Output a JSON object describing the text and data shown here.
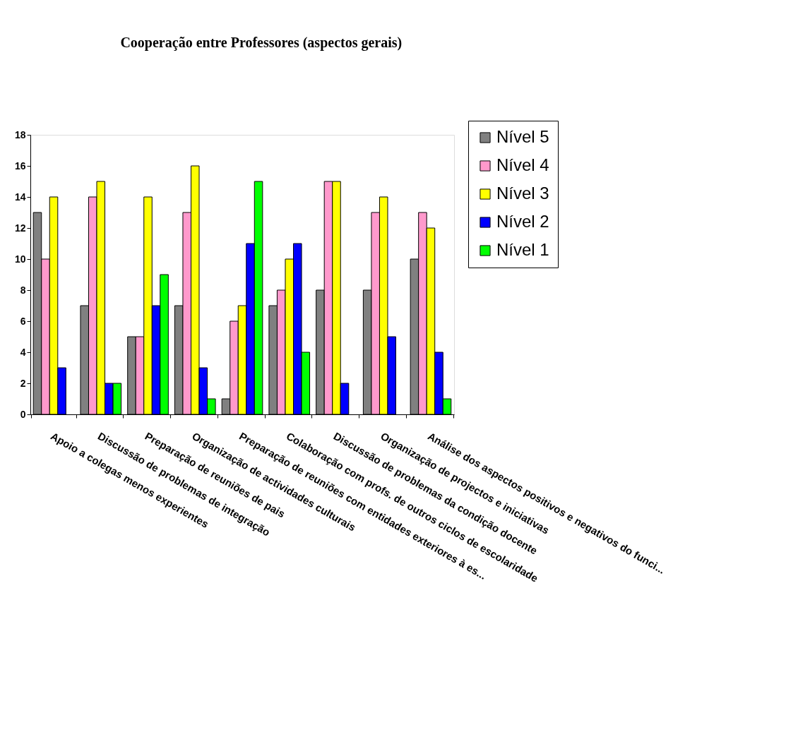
{
  "chart_data": {
    "type": "bar",
    "title": "Cooperação entre Professores (aspectos gerais)",
    "categories": [
      "Apoio a colegas menos experientes",
      "Discussão de problemas de integração",
      "Preparação de reuniões de pais",
      "Organização de actividades culturais",
      "Preparação de reuniões com entidades exteriores à es...",
      "Colaboração com profs. de outros ciclos de escolaridade",
      "Discussão de problemas da condição docente",
      "Organização de projectos e iniciativas",
      "Análise dos aspectos positivos e negativos do funci..."
    ],
    "series": [
      {
        "name": "Nível 5",
        "color": "#808080",
        "values": [
          13,
          7,
          5,
          7,
          1,
          7,
          8,
          8,
          10
        ]
      },
      {
        "name": "Nível 4",
        "color": "#ff99cc",
        "values": [
          10,
          14,
          5,
          13,
          6,
          8,
          15,
          13,
          13
        ]
      },
      {
        "name": "Nível 3",
        "color": "#ffff00",
        "values": [
          14,
          15,
          14,
          16,
          7,
          10,
          15,
          14,
          12
        ]
      },
      {
        "name": "Nível 2",
        "color": "#0000ff",
        "values": [
          3,
          2,
          7,
          3,
          11,
          11,
          2,
          5,
          4
        ]
      },
      {
        "name": "Nível 1",
        "color": "#00ff00",
        "values": [
          null,
          2,
          9,
          1,
          15,
          4,
          null,
          null,
          1
        ]
      }
    ],
    "ylim": [
      0,
      18
    ],
    "yticks": [
      0,
      2,
      4,
      6,
      8,
      10,
      12,
      14,
      16,
      18
    ],
    "grid": false,
    "legend": "top right"
  }
}
